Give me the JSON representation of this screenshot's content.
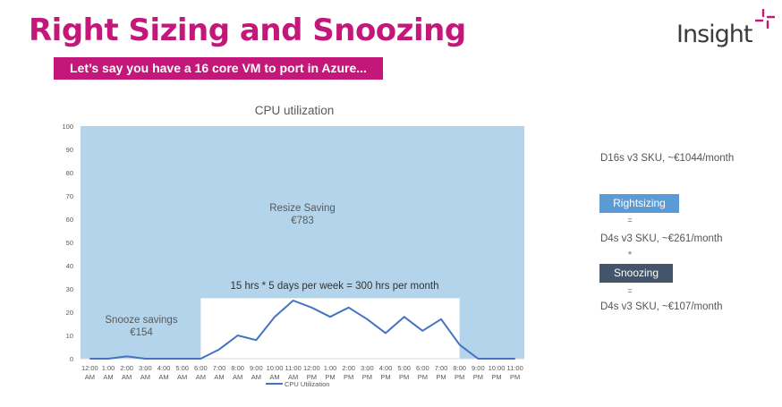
{
  "header": {
    "title": "Right Sizing and Snoozing",
    "subtitle": "Let’s say you have a 16 core VM to port in Azure...",
    "logo_text": "Insight",
    "colors": {
      "brand": "#c4177a",
      "logo_text": "#3b3b3b"
    }
  },
  "chart_data": {
    "type": "line",
    "title": "CPU utilization",
    "categories": [
      "12:00 AM",
      "1:00 AM",
      "2:00 AM",
      "3:00 AM",
      "4:00 AM",
      "5:00 AM",
      "6:00 AM",
      "7:00 AM",
      "8:00 AM",
      "9:00 AM",
      "10:00 AM",
      "11:00 AM",
      "12:00 PM",
      "1:00 PM",
      "2:00 PM",
      "3:00 PM",
      "4:00 PM",
      "5:00 PM",
      "6:00 PM",
      "7:00 PM",
      "8:00 PM",
      "9:00 PM",
      "10:00 PM",
      "11:00 PM"
    ],
    "series": [
      {
        "name": "CPU Utilization",
        "color": "#4472c4",
        "values": [
          0,
          0,
          1,
          0,
          0,
          0,
          0,
          4,
          10,
          8,
          18,
          25,
          22,
          18,
          22,
          17,
          11,
          18,
          12,
          17,
          6,
          0,
          0,
          0
        ]
      }
    ],
    "ylim": [
      0,
      100
    ],
    "yticks": [
      0,
      10,
      20,
      30,
      40,
      50,
      60,
      70,
      80,
      90,
      100
    ],
    "grid": false,
    "legend": "bottom",
    "background_color": "#b4d4ec",
    "business_hours_window": {
      "from": "6:00 AM",
      "to": "8:00 PM",
      "ymax": 26,
      "color": "#ffffff"
    },
    "annotations": {
      "resize_label": "Resize Saving",
      "resize_value": "€783",
      "snooze_label": "Snooze savings",
      "snooze_value": "€154",
      "hours_note": "15 hrs * 5 days per week = 300 hrs per month"
    }
  },
  "side_panel": {
    "current_sku": "D16s v3 SKU, ~€1044/month",
    "rightsizing_label": "Rightsizing",
    "equals_1": "=",
    "rightsized_sku": "D4s v3 SKU, ~€261/month",
    "plus": "+",
    "snoozing_label": "Snoozing",
    "equals_2": "=",
    "snoozed_sku": "D4s v3 SKU, ~€107/month",
    "colors": {
      "rightsizing_box": "#5b9bd5",
      "snoozing_box": "#44546a"
    }
  }
}
